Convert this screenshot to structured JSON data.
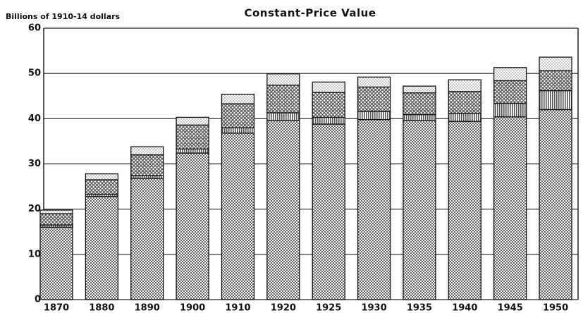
{
  "chart_data": {
    "type": "bar",
    "stacked": true,
    "title": "Constant-Price Value",
    "y_label": "Billions of 1910-14 dollars",
    "categories": [
      "1870",
      "1880",
      "1890",
      "1900",
      "1910",
      "1920",
      "1925",
      "1930",
      "1935",
      "1940",
      "1945",
      "1950"
    ],
    "series": [
      {
        "color": "#555555",
        "pattern": "dense-dots",
        "values": [
          16,
          22.8,
          26.8,
          32.4,
          36.8,
          39.6,
          38.8,
          39.8,
          39.6,
          39.4,
          40.4,
          42.0
        ]
      },
      {
        "color": "#555555",
        "pattern": "vlines",
        "values": [
          0.5,
          0.5,
          0.6,
          0.9,
          1.2,
          1.7,
          1.5,
          1.8,
          1.3,
          1.8,
          3.0,
          4.2
        ]
      },
      {
        "color": "#555555",
        "pattern": "crosshatch",
        "values": [
          2.5,
          3.2,
          4.6,
          5.3,
          5.3,
          6.1,
          5.5,
          5.4,
          4.8,
          4.8,
          5.0,
          4.4
        ]
      },
      {
        "color": "#777777",
        "pattern": "light-dots",
        "values": [
          0.8,
          1.3,
          1.8,
          1.7,
          2.1,
          2.5,
          2.3,
          2.2,
          1.5,
          2.6,
          2.9,
          3.0
        ]
      }
    ],
    "ylim": [
      0,
      60
    ],
    "yticks": [
      0,
      10,
      20,
      30,
      40,
      50,
      60
    ],
    "grid": true
  }
}
